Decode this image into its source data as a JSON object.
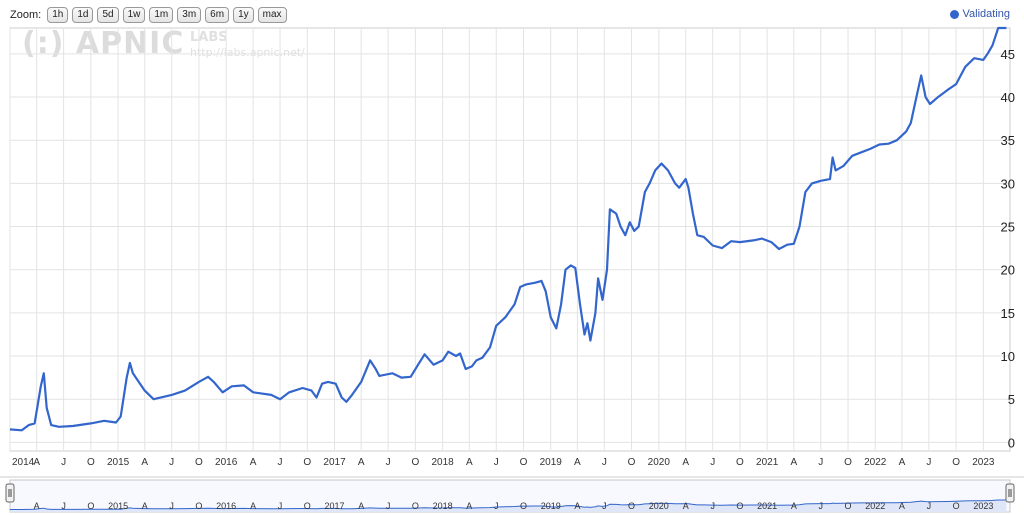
{
  "toolbar": {
    "zoom_label": "Zoom:",
    "buttons": [
      "1h",
      "1d",
      "5d",
      "1w",
      "1m",
      "3m",
      "6m",
      "1y",
      "max"
    ]
  },
  "legend": {
    "label": "Validating",
    "color": "#3366cc"
  },
  "watermark": {
    "brand": "(:) APNIC",
    "labs": "LABS",
    "url": "http://labs.apnic.net/"
  },
  "chart_data": {
    "type": "line",
    "title": "",
    "xlabel": "",
    "ylabel": "",
    "ylim": [
      -1,
      48
    ],
    "xlim": [
      "2014-01-01",
      "2023-04-01"
    ],
    "y_ticks": [
      0,
      5,
      10,
      15,
      20,
      25,
      30,
      35,
      40,
      45
    ],
    "x_ticks": [
      {
        "label": "2014",
        "date": "2014-01-01"
      },
      {
        "label": "A",
        "date": "2014-04-01"
      },
      {
        "label": "J",
        "date": "2014-07-01"
      },
      {
        "label": "O",
        "date": "2014-10-01"
      },
      {
        "label": "2015",
        "date": "2015-01-01"
      },
      {
        "label": "A",
        "date": "2015-04-01"
      },
      {
        "label": "J",
        "date": "2015-07-01"
      },
      {
        "label": "O",
        "date": "2015-10-01"
      },
      {
        "label": "2016",
        "date": "2016-01-01"
      },
      {
        "label": "A",
        "date": "2016-04-01"
      },
      {
        "label": "J",
        "date": "2016-07-01"
      },
      {
        "label": "O",
        "date": "2016-10-01"
      },
      {
        "label": "2017",
        "date": "2017-01-01"
      },
      {
        "label": "A",
        "date": "2017-04-01"
      },
      {
        "label": "J",
        "date": "2017-07-01"
      },
      {
        "label": "O",
        "date": "2017-10-01"
      },
      {
        "label": "2018",
        "date": "2018-01-01"
      },
      {
        "label": "A",
        "date": "2018-04-01"
      },
      {
        "label": "J",
        "date": "2018-07-01"
      },
      {
        "label": "O",
        "date": "2018-10-01"
      },
      {
        "label": "2019",
        "date": "2019-01-01"
      },
      {
        "label": "A",
        "date": "2019-04-01"
      },
      {
        "label": "J",
        "date": "2019-07-01"
      },
      {
        "label": "O",
        "date": "2019-10-01"
      },
      {
        "label": "2020",
        "date": "2020-01-01"
      },
      {
        "label": "A",
        "date": "2020-04-01"
      },
      {
        "label": "J",
        "date": "2020-07-01"
      },
      {
        "label": "O",
        "date": "2020-10-01"
      },
      {
        "label": "2021",
        "date": "2021-01-01"
      },
      {
        "label": "A",
        "date": "2021-04-01"
      },
      {
        "label": "J",
        "date": "2021-07-01"
      },
      {
        "label": "O",
        "date": "2021-10-01"
      },
      {
        "label": "2022",
        "date": "2022-01-01"
      },
      {
        "label": "A",
        "date": "2022-04-01"
      },
      {
        "label": "J",
        "date": "2022-07-01"
      },
      {
        "label": "O",
        "date": "2022-10-01"
      },
      {
        "label": "2023",
        "date": "2023-01-01"
      }
    ],
    "nav_ticks": [
      "A",
      "J",
      "O",
      "2015",
      "A",
      "J",
      "O",
      "2016",
      "A",
      "J",
      "O",
      "2017",
      "A",
      "J",
      "O",
      "2018",
      "A",
      "J",
      "O",
      "2019",
      "A",
      "J",
      "O",
      "2020",
      "A",
      "J",
      "O",
      "2021",
      "A",
      "J",
      "O",
      "2022",
      "A",
      "J",
      "O",
      "2023"
    ],
    "grid": true,
    "legend_position": "top-right",
    "series": [
      {
        "name": "Validating",
        "color": "#3366cc",
        "points": [
          [
            "2014-01-01",
            1.5
          ],
          [
            "2014-02-10",
            1.4
          ],
          [
            "2014-03-05",
            2.0
          ],
          [
            "2014-03-25",
            2.2
          ],
          [
            "2014-04-15",
            6.5
          ],
          [
            "2014-04-25",
            8.0
          ],
          [
            "2014-05-05",
            4.0
          ],
          [
            "2014-05-20",
            2.0
          ],
          [
            "2014-06-15",
            1.8
          ],
          [
            "2014-08-01",
            1.9
          ],
          [
            "2014-10-01",
            2.2
          ],
          [
            "2014-11-15",
            2.5
          ],
          [
            "2014-12-25",
            2.3
          ],
          [
            "2015-01-10",
            3.0
          ],
          [
            "2015-01-30",
            7.5
          ],
          [
            "2015-02-10",
            9.2
          ],
          [
            "2015-02-20",
            8.0
          ],
          [
            "2015-04-01",
            6.0
          ],
          [
            "2015-05-01",
            5.0
          ],
          [
            "2015-07-01",
            5.5
          ],
          [
            "2015-08-15",
            6.0
          ],
          [
            "2015-10-01",
            7.0
          ],
          [
            "2015-11-01",
            7.6
          ],
          [
            "2015-11-20",
            7.0
          ],
          [
            "2015-12-20",
            5.8
          ],
          [
            "2016-01-20",
            6.5
          ],
          [
            "2016-03-01",
            6.6
          ],
          [
            "2016-04-01",
            5.8
          ],
          [
            "2016-06-01",
            5.5
          ],
          [
            "2016-07-01",
            5.0
          ],
          [
            "2016-08-01",
            5.8
          ],
          [
            "2016-09-15",
            6.3
          ],
          [
            "2016-10-15",
            6.0
          ],
          [
            "2016-11-01",
            5.2
          ],
          [
            "2016-11-20",
            6.8
          ],
          [
            "2016-12-10",
            7.0
          ],
          [
            "2017-01-05",
            6.8
          ],
          [
            "2017-01-25",
            5.2
          ],
          [
            "2017-02-10",
            4.7
          ],
          [
            "2017-03-01",
            5.5
          ],
          [
            "2017-04-01",
            7.0
          ],
          [
            "2017-05-01",
            9.5
          ],
          [
            "2017-05-20",
            8.5
          ],
          [
            "2017-06-01",
            7.7
          ],
          [
            "2017-07-15",
            8.0
          ],
          [
            "2017-08-15",
            7.5
          ],
          [
            "2017-09-15",
            7.6
          ],
          [
            "2017-10-10",
            9.0
          ],
          [
            "2017-11-01",
            10.2
          ],
          [
            "2017-12-01",
            9.0
          ],
          [
            "2018-01-01",
            9.5
          ],
          [
            "2018-01-20",
            10.5
          ],
          [
            "2018-02-15",
            10.0
          ],
          [
            "2018-03-01",
            10.3
          ],
          [
            "2018-03-20",
            8.5
          ],
          [
            "2018-04-10",
            8.8
          ],
          [
            "2018-04-25",
            9.5
          ],
          [
            "2018-05-15",
            9.8
          ],
          [
            "2018-06-10",
            11.0
          ],
          [
            "2018-07-01",
            13.5
          ],
          [
            "2018-08-01",
            14.5
          ],
          [
            "2018-09-01",
            16.0
          ],
          [
            "2018-09-20",
            18.0
          ],
          [
            "2018-10-10",
            18.3
          ],
          [
            "2018-11-10",
            18.5
          ],
          [
            "2018-12-01",
            18.7
          ],
          [
            "2018-12-15",
            17.5
          ],
          [
            "2019-01-01",
            14.5
          ],
          [
            "2019-01-20",
            13.2
          ],
          [
            "2019-02-05",
            16.0
          ],
          [
            "2019-02-20",
            20.0
          ],
          [
            "2019-03-10",
            20.5
          ],
          [
            "2019-03-25",
            20.2
          ],
          [
            "2019-04-10",
            16.0
          ],
          [
            "2019-04-25",
            12.5
          ],
          [
            "2019-05-05",
            13.8
          ],
          [
            "2019-05-15",
            11.8
          ],
          [
            "2019-06-01",
            15.0
          ],
          [
            "2019-06-10",
            19.0
          ],
          [
            "2019-06-25",
            16.5
          ],
          [
            "2019-07-10",
            20.0
          ],
          [
            "2019-07-20",
            27.0
          ],
          [
            "2019-08-10",
            26.5
          ],
          [
            "2019-08-25",
            25.0
          ],
          [
            "2019-09-10",
            24.0
          ],
          [
            "2019-09-25",
            25.5
          ],
          [
            "2019-10-10",
            24.5
          ],
          [
            "2019-10-25",
            25.0
          ],
          [
            "2019-11-15",
            29.0
          ],
          [
            "2019-12-01",
            30.0
          ],
          [
            "2019-12-20",
            31.5
          ],
          [
            "2020-01-10",
            32.3
          ],
          [
            "2020-02-01",
            31.5
          ],
          [
            "2020-02-25",
            30.0
          ],
          [
            "2020-03-10",
            29.5
          ],
          [
            "2020-04-01",
            30.5
          ],
          [
            "2020-04-10",
            29.5
          ],
          [
            "2020-04-25",
            26.5
          ],
          [
            "2020-05-10",
            24.0
          ],
          [
            "2020-06-01",
            23.8
          ],
          [
            "2020-07-01",
            22.8
          ],
          [
            "2020-08-01",
            22.5
          ],
          [
            "2020-09-01",
            23.3
          ],
          [
            "2020-10-01",
            23.2
          ],
          [
            "2020-11-15",
            23.4
          ],
          [
            "2020-12-15",
            23.6
          ],
          [
            "2021-01-15",
            23.2
          ],
          [
            "2021-02-10",
            22.4
          ],
          [
            "2021-03-10",
            22.9
          ],
          [
            "2021-04-01",
            23.0
          ],
          [
            "2021-04-20",
            25.0
          ],
          [
            "2021-05-10",
            29.0
          ],
          [
            "2021-06-01",
            30.0
          ],
          [
            "2021-07-01",
            30.3
          ],
          [
            "2021-08-01",
            30.5
          ],
          [
            "2021-08-10",
            33.0
          ],
          [
            "2021-08-20",
            31.5
          ],
          [
            "2021-09-15",
            32.0
          ],
          [
            "2021-10-15",
            33.2
          ],
          [
            "2021-11-15",
            33.6
          ],
          [
            "2021-12-15",
            34.0
          ],
          [
            "2022-01-15",
            34.5
          ],
          [
            "2022-02-15",
            34.6
          ],
          [
            "2022-03-15",
            35.0
          ],
          [
            "2022-04-15",
            36.0
          ],
          [
            "2022-05-01",
            37.0
          ],
          [
            "2022-05-20",
            40.0
          ],
          [
            "2022-06-05",
            42.5
          ],
          [
            "2022-06-20",
            40.0
          ],
          [
            "2022-07-05",
            39.2
          ],
          [
            "2022-08-01",
            40.0
          ],
          [
            "2022-09-01",
            40.8
          ],
          [
            "2022-10-01",
            41.5
          ],
          [
            "2022-11-01",
            43.5
          ],
          [
            "2022-12-01",
            44.5
          ],
          [
            "2023-01-01",
            44.3
          ],
          [
            "2023-01-15",
            45.0
          ],
          [
            "2023-02-01",
            46.0
          ],
          [
            "2023-02-20",
            48.0
          ],
          [
            "2023-03-20",
            48.0
          ]
        ]
      }
    ]
  }
}
